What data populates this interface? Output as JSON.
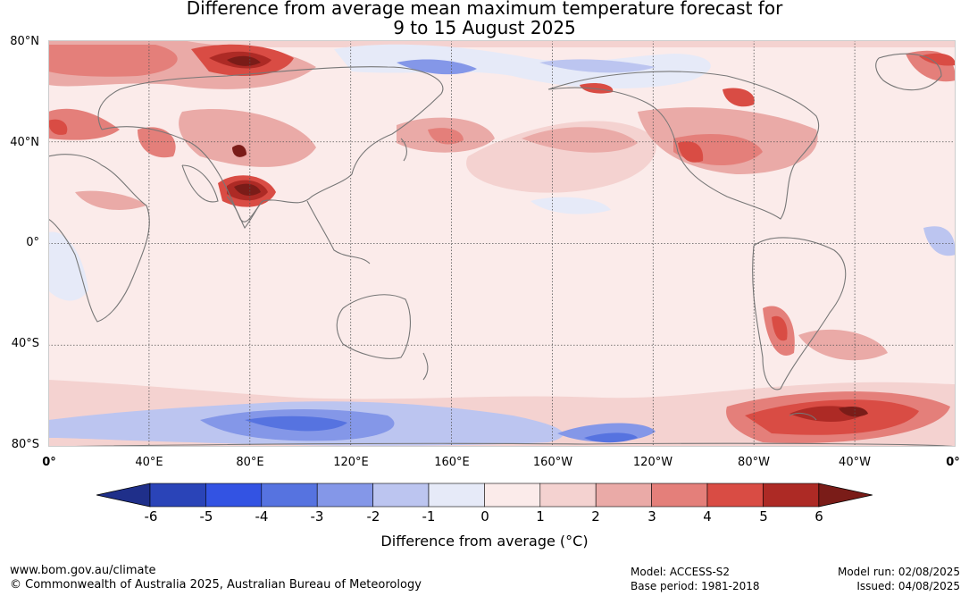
{
  "title": {
    "line1": "Difference from average mean maximum temperature forecast for",
    "line2": "9 to 15 August 2025"
  },
  "map": {
    "lat_labels": [
      "80°N",
      "40°N",
      "0°",
      "40°S",
      "80°S"
    ],
    "lon_labels": [
      "0°",
      "40°E",
      "80°E",
      "120°E",
      "160°E",
      "160°W",
      "120°W",
      "80°W",
      "40°W",
      "0°"
    ],
    "ocean_color": "#fbebea",
    "coast_color": "#777777"
  },
  "colorbar": {
    "title": "Difference from average (°C)",
    "tick_labels": [
      "-6",
      "-5",
      "-4",
      "-3",
      "-2",
      "-1",
      "0",
      "1",
      "2",
      "3",
      "4",
      "5",
      "6"
    ],
    "colors": [
      "#1f2f8a",
      "#2a44b8",
      "#3353e3",
      "#5673e0",
      "#8497e8",
      "#bcc5f0",
      "#e6eaf8",
      "#fbebea",
      "#f4d2d0",
      "#eaaaa7",
      "#e47f7a",
      "#d94c44",
      "#ad2a25",
      "#7a1c18"
    ]
  },
  "footer": {
    "website": "www.bom.gov.au/climate",
    "copyright": "© Commonwealth of Australia 2025, Australian Bureau of Meteorology",
    "model": "Model: ACCESS-S2",
    "base_period": "Base period: 1981-2018",
    "model_run": "Model run: 02/08/2025",
    "issued": "Issued: 04/08/2025"
  }
}
